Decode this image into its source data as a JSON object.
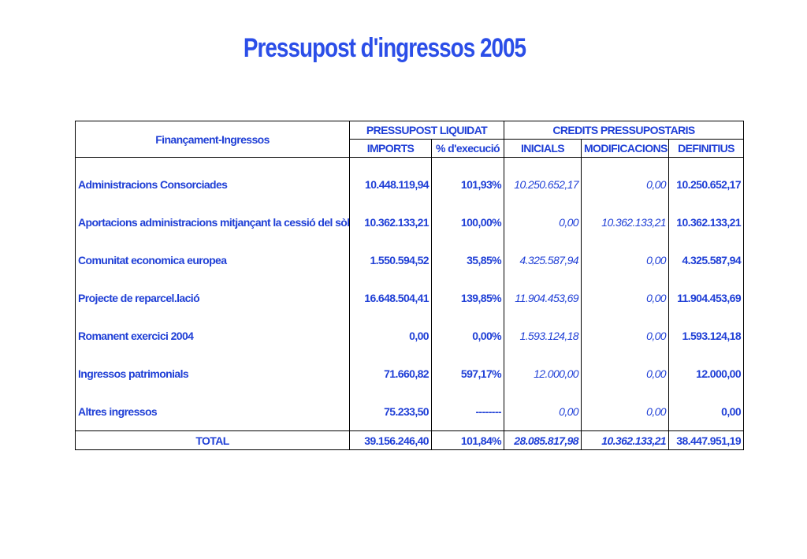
{
  "title": "Pressupost d'ingressos 2005",
  "header": {
    "first_col": "Finançament-Ingressos",
    "group1": "PRESSUPOST LIQUIDAT",
    "group2": "CREDITS PRESSUPOSTARIS",
    "cols": [
      "IMPORTS",
      "% d'execució",
      "INICIALS",
      "MODIFICACIONS",
      "DEFINITIUS"
    ]
  },
  "rows": [
    {
      "label": "Administracions Consorciades",
      "imports": "10.448.119,94",
      "exec": "101,93%",
      "inicials": "10.250.652,17",
      "modif": "0,00",
      "definitius": "10.250.652,17"
    },
    {
      "label": "Aportacions administracions mitjançant la cessió del sòl",
      "imports": "10.362.133,21",
      "exec": "100,00%",
      "inicials": "0,00",
      "modif": "10.362.133,21",
      "definitius": "10.362.133,21"
    },
    {
      "label": "Comunitat economica europea",
      "imports": "1.550.594,52",
      "exec": "35,85%",
      "inicials": "4.325.587,94",
      "modif": "0,00",
      "definitius": "4.325.587,94"
    },
    {
      "label": "Projecte de reparcel.lació",
      "imports": "16.648.504,41",
      "exec": "139,85%",
      "inicials": "11.904.453,69",
      "modif": "0,00",
      "definitius": "11.904.453,69"
    },
    {
      "label": "Romanent exercici 2004",
      "imports": "0,00",
      "exec": "0,00%",
      "inicials": "1.593.124,18",
      "modif": "0,00",
      "definitius": "1.593.124,18"
    },
    {
      "label": "Ingressos patrimonials",
      "imports": "71.660,82",
      "exec": "597,17%",
      "inicials": "12.000,00",
      "modif": "0,00",
      "definitius": "12.000,00"
    },
    {
      "label": "Altres ingressos",
      "imports": "75.233,50",
      "exec": "--------",
      "inicials": "0,00",
      "modif": "0,00",
      "definitius": "0,00"
    }
  ],
  "total": {
    "label": "TOTAL",
    "imports": "39.156.246,40",
    "exec": "101,84%",
    "inicials": "28.085.817,98",
    "modif": "10.362.133,21",
    "definitius": "38.447.951,19"
  }
}
